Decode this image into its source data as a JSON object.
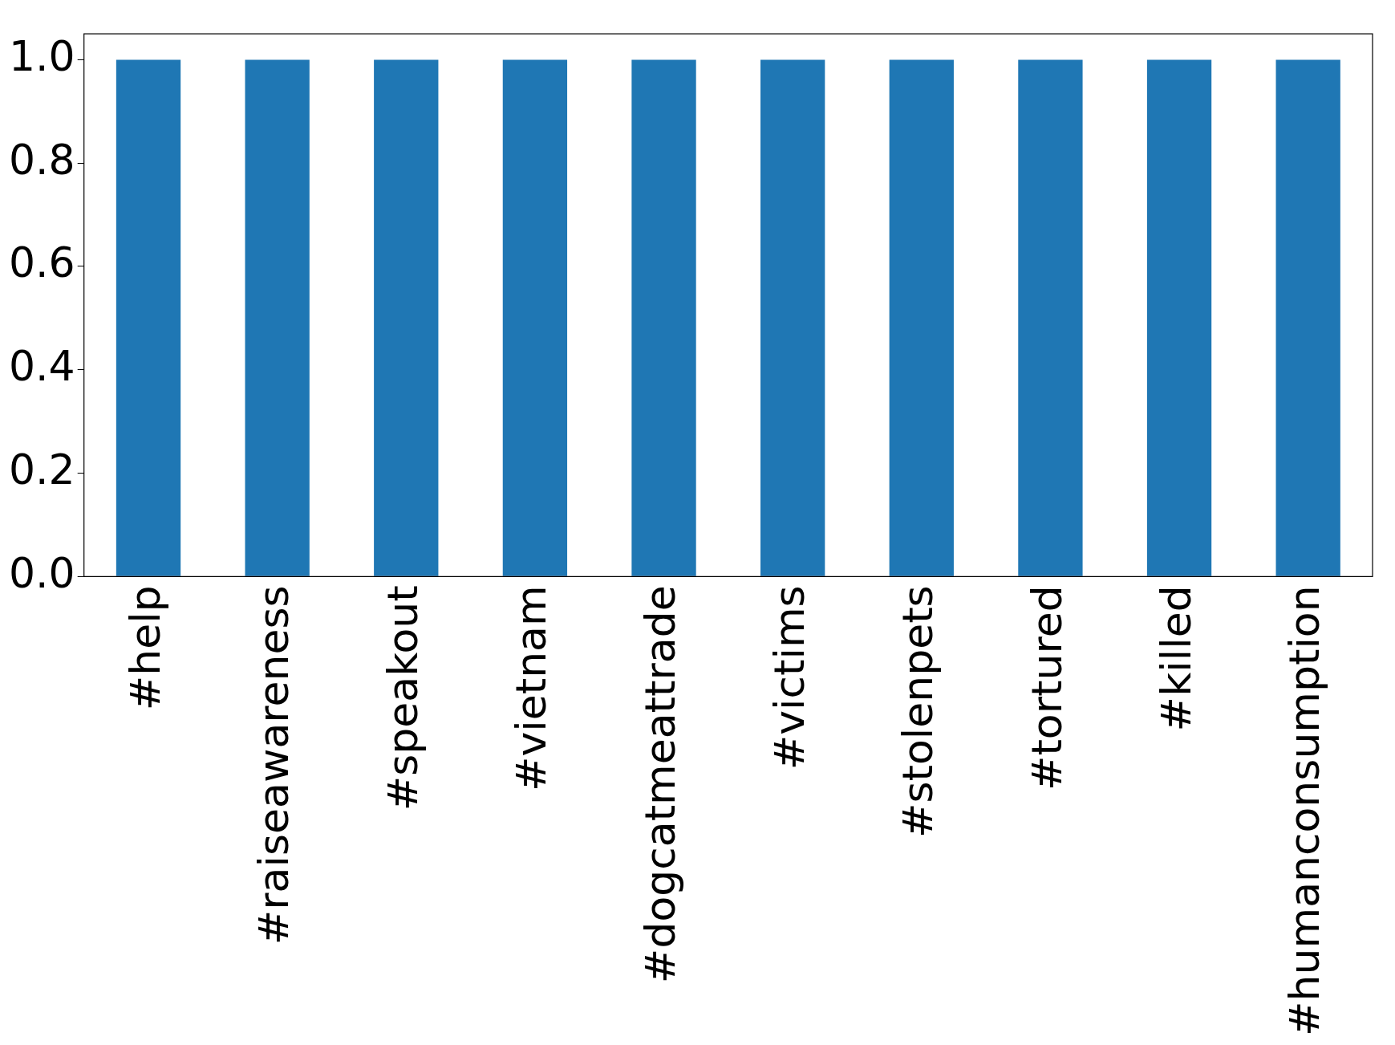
{
  "chart_data": {
    "type": "bar",
    "categories": [
      "#help",
      "#raiseawareness",
      "#speakout",
      "#vietnam",
      "#dogcatmeattrade",
      "#victims",
      "#stolenpets",
      "#tortured",
      "#killed",
      "#humanconsumption"
    ],
    "values": [
      1,
      1,
      1,
      1,
      1,
      1,
      1,
      1,
      1,
      1
    ],
    "color": "#1f77b4",
    "ylim": [
      0,
      1.05
    ],
    "yticks": [
      {
        "value": 0,
        "label": "0.0"
      },
      {
        "value": 0.2,
        "label": "0.2"
      },
      {
        "value": 0.4,
        "label": "0.4"
      },
      {
        "value": 0.6,
        "label": "0.6"
      },
      {
        "value": 0.8,
        "label": "0.8"
      },
      {
        "value": 1,
        "label": "1.0"
      }
    ],
    "grid": false,
    "legend": false
  }
}
